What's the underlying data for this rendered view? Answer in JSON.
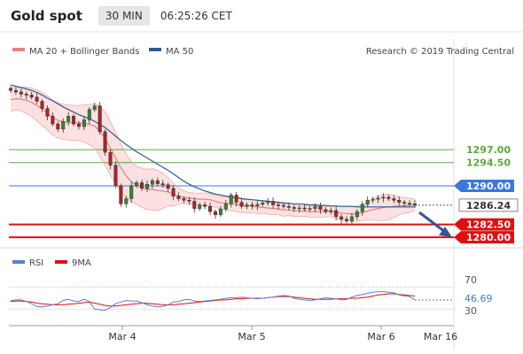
{
  "header": {
    "title": "Gold spot",
    "timeframe": "30 MIN",
    "time": "06:25:26 CET"
  },
  "legend": {
    "ma20": {
      "label": "MA 20 + Bollinger Bands",
      "color": "#e88080"
    },
    "ma50": {
      "label": "MA 50",
      "color": "#2b5a96"
    },
    "credit": "Research © 2019 Trading Central"
  },
  "rsi_legend": {
    "rsi": {
      "label": "RSI",
      "color": "#5a7fd8"
    },
    "ma9": {
      "label": "9MA",
      "color": "#e01010"
    }
  },
  "levels": [
    {
      "value": 1297.0,
      "label": "1297.00",
      "kind": "resistance",
      "color": "#5aaa3a"
    },
    {
      "value": 1294.5,
      "label": "1294.50",
      "kind": "resistance",
      "color": "#5aaa3a"
    },
    {
      "value": 1290.0,
      "label": "1290.00",
      "kind": "pivot",
      "color": "#3a78e0"
    },
    {
      "value": 1286.24,
      "label": "1286.24",
      "kind": "last",
      "color": "#333333"
    },
    {
      "value": 1282.5,
      "label": "1282.50",
      "kind": "support",
      "color": "#e01010"
    },
    {
      "value": 1280.0,
      "label": "1280.00",
      "kind": "support",
      "color": "#e01010"
    }
  ],
  "rsi_levels": {
    "upper_label": "70",
    "lower_label": "30",
    "current_label": "46.69",
    "upper": 70,
    "lower": 30,
    "current": 46.69
  },
  "x_axis": {
    "labels": [
      "Mar 4",
      "Mar 5",
      "Mar 6",
      "Mar 16"
    ]
  },
  "chart_data": {
    "type": "candlestick",
    "ylim": [
      1279,
      1313
    ],
    "rsi_ylim": [
      0,
      100
    ],
    "close": [
      1308.5,
      1308.2,
      1307.8,
      1307.6,
      1307.2,
      1306.4,
      1305.0,
      1303.5,
      1302.0,
      1301.0,
      1302.5,
      1303.5,
      1302.0,
      1301.5,
      1302.8,
      1304.8,
      1305.5,
      1300.5,
      1296.5,
      1294.0,
      1290.0,
      1286.5,
      1287.5,
      1290.0,
      1290.6,
      1289.5,
      1290.3,
      1291.0,
      1290.4,
      1290.2,
      1289.5,
      1288.0,
      1287.5,
      1287.2,
      1287.0,
      1285.6,
      1286.3,
      1286.0,
      1285.0,
      1284.4,
      1285.5,
      1286.5,
      1288.2,
      1286.8,
      1286.0,
      1286.3,
      1286.1,
      1286.4,
      1286.7,
      1287.0,
      1286.3,
      1286.2,
      1286.0,
      1285.8,
      1285.6,
      1285.7,
      1285.5,
      1285.6,
      1286.0,
      1285.4,
      1285.0,
      1285.2,
      1284.0,
      1283.5,
      1283.2,
      1284.0,
      1285.0,
      1286.4,
      1287.2,
      1287.4,
      1287.6,
      1287.8,
      1287.5,
      1287.2,
      1286.8,
      1286.6,
      1286.5,
      1286.24
    ],
    "ma20": [
      1306.7,
      1306.9,
      1306.8,
      1306.6,
      1306.2,
      1305.6,
      1304.9,
      1304.1,
      1303.3,
      1302.7,
      1302.4,
      1302.3,
      1302.2,
      1302.2,
      1302.1,
      1301.9,
      1301.6,
      1300.6,
      1299.1,
      1297.3,
      1295.4,
      1293.5,
      1291.9,
      1290.8,
      1290.1,
      1289.6,
      1289.3,
      1289.3,
      1289.1,
      1289.0,
      1288.8,
      1288.3,
      1288.0,
      1287.8,
      1287.6,
      1287.5,
      1287.4,
      1287.4,
      1287.3,
      1287.0,
      1286.7,
      1286.6,
      1286.5,
      1286.4,
      1286.2,
      1286.1,
      1286.0,
      1285.9,
      1285.8,
      1285.7,
      1285.6,
      1285.5,
      1285.3,
      1285.3,
      1285.2,
      1285.1,
      1285.1,
      1285.0,
      1285.0,
      1285.0,
      1285.0,
      1285.0,
      1284.8,
      1284.7,
      1284.6,
      1284.5,
      1284.6,
      1284.8,
      1285.1,
      1285.4,
      1285.6,
      1285.8,
      1285.9,
      1286.0,
      1286.1,
      1286.2,
      1286.2,
      1286.3
    ],
    "bb_upper": [
      1309.0,
      1309.1,
      1309.1,
      1309.2,
      1309.0,
      1308.6,
      1308.1,
      1307.4,
      1306.7,
      1306.1,
      1305.8,
      1305.7,
      1305.6,
      1305.6,
      1305.7,
      1305.8,
      1305.9,
      1305.5,
      1304.3,
      1302.5,
      1300.4,
      1298.2,
      1296.2,
      1294.7,
      1293.8,
      1293.4,
      1293.2,
      1293.3,
      1293.0,
      1292.4,
      1291.5,
      1290.5,
      1289.6,
      1289.0,
      1288.7,
      1288.6,
      1288.6,
      1288.6,
      1288.5,
      1288.2,
      1287.9,
      1287.8,
      1287.9,
      1287.8,
      1287.6,
      1287.4,
      1287.3,
      1287.2,
      1287.0,
      1286.9,
      1286.8,
      1286.6,
      1286.5,
      1286.4,
      1286.3,
      1286.2,
      1286.1,
      1286.1,
      1286.1,
      1286.1,
      1286.0,
      1286.0,
      1286.0,
      1286.0,
      1286.0,
      1286.0,
      1286.1,
      1286.4,
      1286.8,
      1287.4,
      1288.0,
      1288.3,
      1288.4,
      1288.2,
      1287.9,
      1287.7,
      1287.6,
      1287.4
    ],
    "bb_lower": [
      1304.4,
      1304.7,
      1304.5,
      1304.0,
      1303.4,
      1302.6,
      1301.7,
      1300.8,
      1299.9,
      1299.3,
      1299.0,
      1298.9,
      1298.8,
      1298.8,
      1298.5,
      1298.0,
      1297.3,
      1295.7,
      1293.9,
      1292.1,
      1290.4,
      1288.8,
      1287.6,
      1286.9,
      1286.4,
      1285.8,
      1285.4,
      1285.3,
      1285.2,
      1285.6,
      1286.1,
      1286.1,
      1286.4,
      1286.6,
      1286.5,
      1286.4,
      1286.2,
      1286.2,
      1286.1,
      1285.8,
      1285.5,
      1285.4,
      1285.1,
      1285.0,
      1284.8,
      1284.8,
      1284.7,
      1284.6,
      1284.6,
      1284.5,
      1284.4,
      1284.4,
      1284.1,
      1284.2,
      1284.1,
      1284.0,
      1284.1,
      1283.9,
      1283.9,
      1283.9,
      1284.0,
      1284.0,
      1283.6,
      1283.4,
      1283.2,
      1283.0,
      1283.1,
      1283.2,
      1283.4,
      1283.4,
      1283.2,
      1283.3,
      1283.4,
      1283.8,
      1284.3,
      1284.7,
      1284.8,
      1285.2
    ],
    "ma50": [
      1309.6,
      1309.3,
      1309.1,
      1308.8,
      1308.5,
      1308.1,
      1307.6,
      1307.0,
      1306.5,
      1305.9,
      1305.3,
      1304.8,
      1304.3,
      1303.8,
      1303.4,
      1303.0,
      1302.5,
      1301.9,
      1301.3,
      1300.5,
      1299.6,
      1298.8,
      1298.0,
      1297.3,
      1296.6,
      1296.0,
      1295.4,
      1294.8,
      1294.2,
      1293.6,
      1293.0,
      1292.3,
      1291.6,
      1290.9,
      1290.3,
      1289.8,
      1289.4,
      1289.0,
      1288.7,
      1288.4,
      1288.2,
      1288.0,
      1287.8,
      1287.7,
      1287.5,
      1287.4,
      1287.3,
      1287.2,
      1287.1,
      1287.0,
      1286.9,
      1286.8,
      1286.7,
      1286.6,
      1286.5,
      1286.5,
      1286.4,
      1286.3,
      1286.3,
      1286.2,
      1286.2,
      1286.1,
      1286.1,
      1286.0,
      1286.0,
      1286.0,
      1285.9,
      1285.9,
      1285.9,
      1285.9,
      1285.9,
      1285.9,
      1285.9,
      1285.9,
      1285.9,
      1285.9,
      1285.9,
      1285.9
    ],
    "rsi": [
      46,
      47,
      47,
      44,
      40,
      35,
      34,
      36,
      38,
      40,
      46,
      48,
      45,
      44,
      48,
      44,
      30,
      29,
      28,
      33,
      40,
      43,
      46,
      45,
      45,
      42,
      38,
      36,
      34,
      35,
      38,
      43,
      44,
      47,
      48,
      45,
      44,
      45,
      46,
      47,
      48,
      50,
      51,
      51,
      52,
      51,
      50,
      49,
      50,
      51,
      52,
      54,
      55,
      54,
      50,
      48,
      47,
      46,
      47,
      49,
      51,
      50,
      49,
      47,
      48,
      52,
      55,
      57,
      59,
      61,
      62,
      62,
      61,
      60,
      56,
      54,
      53,
      47
    ],
    "rsi_ma": [
      44,
      45,
      45,
      44,
      43,
      41,
      40,
      39,
      38,
      38,
      38,
      39,
      40,
      41,
      42,
      43,
      41,
      39,
      37,
      36,
      36,
      37,
      38,
      39,
      40,
      41,
      41,
      40,
      39,
      38,
      38,
      38,
      39,
      40,
      41,
      42,
      43,
      44,
      45,
      46,
      47,
      47,
      48,
      49,
      49,
      50,
      50,
      50,
      50,
      51,
      52,
      53,
      53,
      53,
      52,
      51,
      50,
      49,
      48,
      48,
      48,
      48,
      49,
      49,
      49,
      50,
      50,
      51,
      52,
      54,
      56,
      57,
      58,
      58,
      57,
      56,
      55,
      54
    ]
  }
}
